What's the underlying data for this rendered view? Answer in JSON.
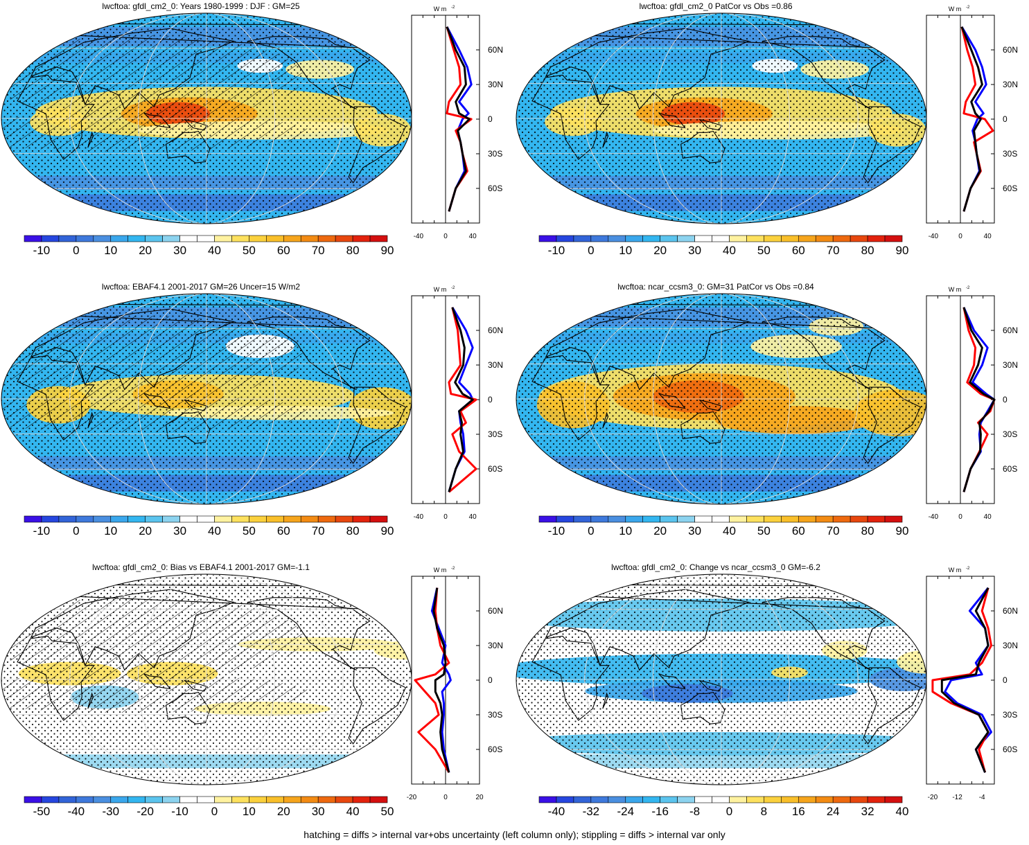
{
  "footnote": "hatching = diffs > internal var+obs uncertainty (left column only); stippling = diffs > internal var only",
  "profile_axis_unit": "W m",
  "profile_axis_unit_sup": "-2",
  "lat_labels": [
    "60N",
    "30N",
    "0",
    "30S",
    "60S"
  ],
  "colors": {
    "model_line": "#0000ff",
    "obs_line": "#ff0000",
    "ref_line": "#000000",
    "land_outline": "#000000",
    "hatching": "#000000"
  },
  "panels": [
    {
      "id": "model-mean",
      "title": "lwcftoa: gfdl_cm2_0: Years 1980-1999 : DJF : GM=25",
      "colorbar_ticks": [
        "-10",
        "0",
        "10",
        "20",
        "30",
        "40",
        "50",
        "60",
        "70",
        "80",
        "90"
      ],
      "colorbar_colors": [
        "#3a10e6",
        "#2646df",
        "#3264d8",
        "#3e79dc",
        "#4a8fe0",
        "#3aa7ec",
        "#33b6f0",
        "#5bc4ee",
        "#8cd3ef",
        "#ffffff",
        "#ffffff",
        "#fff2a0",
        "#fde15e",
        "#fbd13d",
        "#f9bf2a",
        "#f6a51c",
        "#f38b13",
        "#ee690f",
        "#e8470e",
        "#e3220d",
        "#d40f0f"
      ],
      "profile_ticks": [
        "-40",
        "0",
        "40"
      ],
      "hatched": true,
      "pattern": "mean"
    },
    {
      "id": "model-patcor",
      "title": "lwcftoa: gfdl_cm2_0 PatCor vs Obs =0.86",
      "colorbar_ticks": [
        "-10",
        "0",
        "10",
        "20",
        "30",
        "40",
        "50",
        "60",
        "70",
        "80",
        "90"
      ],
      "colorbar_colors": [
        "#3a10e6",
        "#2646df",
        "#3264d8",
        "#3e79dc",
        "#4a8fe0",
        "#3aa7ec",
        "#33b6f0",
        "#5bc4ee",
        "#8cd3ef",
        "#ffffff",
        "#ffffff",
        "#fff2a0",
        "#fde15e",
        "#fbd13d",
        "#f9bf2a",
        "#f6a51c",
        "#f38b13",
        "#ee690f",
        "#e8470e",
        "#e3220d",
        "#d40f0f"
      ],
      "profile_ticks": [
        "-40",
        "0",
        "40"
      ],
      "hatched": false,
      "pattern": "mean"
    },
    {
      "id": "obs-mean",
      "title": "lwcftoa: EBAF4.1 2001-2017 GM=26 Uncer=15 W/m2",
      "colorbar_ticks": [
        "-10",
        "0",
        "10",
        "20",
        "30",
        "40",
        "50",
        "60",
        "70",
        "80",
        "90"
      ],
      "colorbar_colors": [
        "#3a10e6",
        "#2646df",
        "#3264d8",
        "#3e79dc",
        "#4a8fe0",
        "#3aa7ec",
        "#33b6f0",
        "#5bc4ee",
        "#8cd3ef",
        "#ffffff",
        "#ffffff",
        "#fff2a0",
        "#fde15e",
        "#fbd13d",
        "#f9bf2a",
        "#f6a51c",
        "#f38b13",
        "#ee690f",
        "#e8470e",
        "#e3220d",
        "#d40f0f"
      ],
      "profile_ticks": [
        "-40",
        "0",
        "40"
      ],
      "hatched": true,
      "pattern": "obs"
    },
    {
      "id": "ref-model-mean",
      "title": "lwcftoa: ncar_ccsm3_0: GM=31 PatCor vs Obs =0.84",
      "colorbar_ticks": [
        "-10",
        "0",
        "10",
        "20",
        "30",
        "40",
        "50",
        "60",
        "70",
        "80",
        "90"
      ],
      "colorbar_colors": [
        "#3a10e6",
        "#2646df",
        "#3264d8",
        "#3e79dc",
        "#4a8fe0",
        "#3aa7ec",
        "#33b6f0",
        "#5bc4ee",
        "#8cd3ef",
        "#ffffff",
        "#ffffff",
        "#fff2a0",
        "#fde15e",
        "#fbd13d",
        "#f9bf2a",
        "#f6a51c",
        "#f38b13",
        "#ee690f",
        "#e8470e",
        "#e3220d",
        "#d40f0f"
      ],
      "profile_ticks": [
        "-40",
        "0",
        "40"
      ],
      "hatched": false,
      "pattern": "ref"
    },
    {
      "id": "bias",
      "title": "lwcftoa: gfdl_cm2_0: Bias vs EBAF4.1 2001-2017 GM=-1.1",
      "colorbar_ticks": [
        "-50",
        "-40",
        "-30",
        "-20",
        "-10",
        "0",
        "10",
        "20",
        "30",
        "40",
        "50"
      ],
      "colorbar_colors": [
        "#3a10e6",
        "#2646df",
        "#3264d8",
        "#3e79dc",
        "#4a8fe0",
        "#3aa7ec",
        "#33b6f0",
        "#5bc4ee",
        "#8cd3ef",
        "#ffffff",
        "#ffffff",
        "#fff2a0",
        "#fde15e",
        "#fbd13d",
        "#f9bf2a",
        "#f6a51c",
        "#f38b13",
        "#ee690f",
        "#e8470e",
        "#e3220d",
        "#d40f0f"
      ],
      "profile_ticks": [
        "-20",
        "0",
        "20"
      ],
      "hatched": true,
      "pattern": "bias"
    },
    {
      "id": "change",
      "title": "lwcftoa: gfdl_cm2_0: Change vs ncar_ccsm3_0 GM=-6.2",
      "colorbar_ticks": [
        "-40",
        "-32",
        "-24",
        "-16",
        "-8",
        "0",
        "8",
        "16",
        "24",
        "32",
        "40"
      ],
      "colorbar_colors": [
        "#3a10e6",
        "#2646df",
        "#3264d8",
        "#3e79dc",
        "#4a8fe0",
        "#3aa7ec",
        "#33b6f0",
        "#5bc4ee",
        "#8cd3ef",
        "#ffffff",
        "#ffffff",
        "#fff2a0",
        "#fde15e",
        "#fbd13d",
        "#f9bf2a",
        "#f6a51c",
        "#f38b13",
        "#ee690f",
        "#e8470e",
        "#e3220d",
        "#d40f0f"
      ],
      "profile_ticks": [
        "-20",
        "-12",
        "-4"
      ],
      "hatched": false,
      "pattern": "change"
    }
  ],
  "chart_data": [
    {
      "type": "heatmap",
      "title": "lwcftoa: gfdl_cm2_0: Years 1980-1999 : DJF : GM=25",
      "colorbar": [
        -10,
        0,
        10,
        20,
        30,
        40,
        50,
        60,
        70,
        80,
        90
      ],
      "zonal_mean_lat": [
        80,
        60,
        45,
        30,
        15,
        5,
        0,
        -10,
        -20,
        -30,
        -45,
        -60,
        -80
      ],
      "zonal_mean_series": [
        {
          "values": [
            2,
            20,
            32,
            38,
            20,
            34,
            25,
            18,
            22,
            25,
            28,
            15,
            5
          ]
        },
        {
          "values": [
            2,
            12,
            20,
            22,
            5,
            2,
            38,
            15,
            22,
            25,
            32,
            15,
            5
          ]
        },
        {
          "values": [
            2,
            15,
            28,
            30,
            15,
            20,
            35,
            18,
            22,
            25,
            30,
            15,
            5
          ]
        }
      ],
      "xlim": [
        -50,
        50
      ],
      "ylim": [
        -90,
        90
      ]
    },
    {
      "type": "heatmap",
      "title": "lwcftoa: gfdl_cm2_0 PatCor vs Obs =0.86",
      "colorbar": [
        -10,
        0,
        10,
        20,
        30,
        40,
        50,
        60,
        70,
        80,
        90
      ],
      "zonal_mean_lat": [
        80,
        60,
        45,
        30,
        15,
        5,
        0,
        -10,
        -20,
        -30,
        -45,
        -60,
        -80
      ],
      "zonal_mean_series": [
        {
          "values": [
            2,
            22,
            32,
            38,
            22,
            34,
            25,
            18,
            22,
            24,
            28,
            15,
            5
          ]
        },
        {
          "values": [
            2,
            10,
            18,
            22,
            8,
            5,
            36,
            48,
            20,
            24,
            30,
            15,
            5
          ]
        },
        {
          "values": [
            2,
            16,
            26,
            32,
            16,
            22,
            30,
            20,
            22,
            24,
            29,
            15,
            5
          ]
        }
      ],
      "xlim": [
        -50,
        50
      ],
      "ylim": [
        -90,
        90
      ]
    },
    {
      "type": "heatmap",
      "title": "lwcftoa: EBAF4.1 2001-2017 GM=26 Uncer=15 W/m2",
      "colorbar": [
        -10,
        0,
        10,
        20,
        30,
        40,
        50,
        60,
        70,
        80,
        90
      ],
      "zonal_mean_lat": [
        80,
        60,
        45,
        30,
        15,
        5,
        0,
        -10,
        -20,
        -30,
        -45,
        -60,
        -80
      ],
      "zonal_mean_series": [
        {
          "values": [
            10,
            30,
            40,
            30,
            20,
            36,
            40,
            20,
            22,
            26,
            28,
            15,
            5
          ]
        },
        {
          "values": [
            10,
            18,
            20,
            22,
            5,
            8,
            45,
            22,
            30,
            10,
            20,
            45,
            5
          ]
        },
        {
          "values": [
            10,
            22,
            28,
            26,
            14,
            25,
            40,
            20,
            24,
            22,
            26,
            15,
            5
          ]
        }
      ],
      "xlim": [
        -50,
        50
      ],
      "ylim": [
        -90,
        90
      ]
    },
    {
      "type": "heatmap",
      "title": "lwcftoa: ncar_ccsm3_0: GM=31 PatCor vs Obs =0.84",
      "colorbar": [
        -10,
        0,
        10,
        20,
        30,
        40,
        50,
        60,
        70,
        80,
        90
      ],
      "zonal_mean_lat": [
        80,
        60,
        45,
        30,
        15,
        5,
        0,
        -10,
        -20,
        -30,
        -45,
        -60,
        -80
      ],
      "zonal_mean_series": [
        {
          "values": [
            5,
            20,
            40,
            32,
            18,
            38,
            50,
            40,
            30,
            28,
            30,
            15,
            5
          ]
        },
        {
          "values": [
            5,
            12,
            22,
            20,
            10,
            30,
            50,
            44,
            26,
            40,
            28,
            15,
            5
          ]
        },
        {
          "values": [
            5,
            16,
            32,
            26,
            14,
            34,
            50,
            42,
            28,
            30,
            29,
            15,
            5
          ]
        }
      ],
      "xlim": [
        -50,
        50
      ],
      "ylim": [
        -90,
        90
      ]
    },
    {
      "type": "heatmap",
      "title": "lwcftoa: gfdl_cm2_0: Bias vs EBAF4.1 2001-2017 GM=-1.1",
      "colorbar": [
        -50,
        -40,
        -30,
        -20,
        -10,
        0,
        10,
        20,
        30,
        40,
        50
      ],
      "zonal_mean_lat": [
        80,
        60,
        45,
        30,
        15,
        5,
        0,
        -10,
        -20,
        -30,
        -45,
        -60,
        -80
      ],
      "zonal_mean_series": [
        {
          "values": [
            -5,
            -8,
            -4,
            0,
            -2,
            2,
            3,
            -2,
            -1,
            -1,
            -2,
            -1,
            2
          ]
        },
        {
          "values": [
            -5,
            -6,
            -5,
            -3,
            2,
            -6,
            -18,
            -12,
            -6,
            -4,
            -16,
            -6,
            2
          ]
        },
        {
          "values": [
            -5,
            -7,
            -5,
            -1,
            0,
            -1,
            -6,
            -6,
            -3,
            -2,
            -3,
            -2,
            2
          ]
        }
      ],
      "xlim": [
        -20,
        20
      ],
      "ylim": [
        -90,
        90
      ]
    },
    {
      "type": "heatmap",
      "title": "lwcftoa: gfdl_cm2_0: Change vs ncar_ccsm3_0 GM=-6.2",
      "colorbar": [
        -40,
        -32,
        -24,
        -16,
        -8,
        0,
        8,
        16,
        24,
        32,
        40
      ],
      "zonal_mean_lat": [
        80,
        60,
        45,
        30,
        15,
        5,
        0,
        -10,
        -20,
        -30,
        -45,
        -60,
        -80
      ],
      "zonal_mean_series": [
        {
          "values": [
            -2,
            -8,
            -3,
            -2,
            -6,
            -4,
            -14,
            -16,
            -12,
            -4,
            -1,
            -6,
            -3
          ]
        },
        {
          "values": [
            -2,
            -4,
            -2,
            -1,
            -4,
            -8,
            -20,
            -20,
            -14,
            -5,
            -2,
            -5,
            -3
          ]
        },
        {
          "values": [
            -2,
            -6,
            -3,
            -2,
            -5,
            -6,
            -17,
            -17,
            -13,
            -5,
            -2,
            -6,
            -3
          ]
        }
      ],
      "xlim": [
        -22,
        0
      ],
      "ylim": [
        -90,
        90
      ]
    }
  ]
}
